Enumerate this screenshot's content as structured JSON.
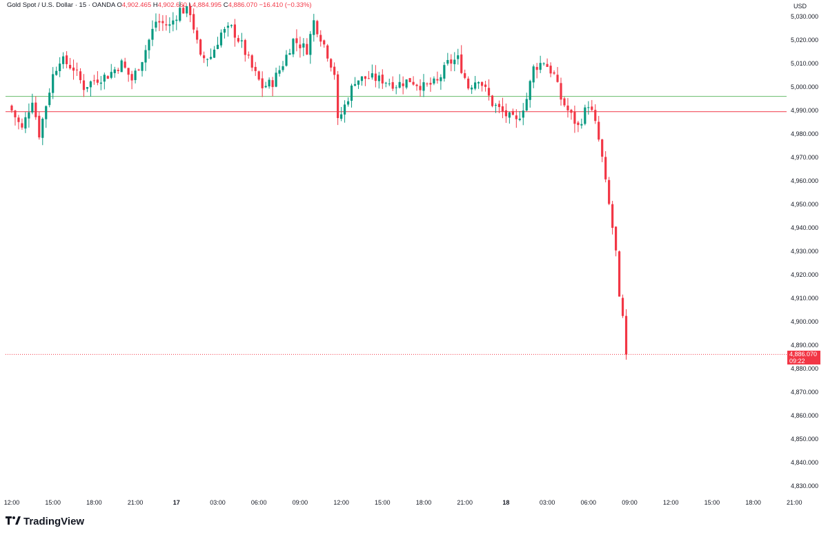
{
  "legend": {
    "symbol": "Gold Spot / U.S. Dollar · 15 · OANDA",
    "o_label": "O",
    "o_value": "4,902.465",
    "h_label": "H",
    "h_value": "4,902.660",
    "l_label": "L",
    "l_value": "4,884.995",
    "c_label": "C",
    "c_value": "4,886.070",
    "change": "−16.410 (−0.33%)"
  },
  "brand": {
    "name": "TradingView",
    "logo_icon": "tradingview-logo-icon"
  },
  "colors": {
    "up": "#089981",
    "down": "#f23645",
    "grid_line_up": "#66bb6a",
    "grid_line_down": "#f23645",
    "last_price": "#f23645"
  },
  "chart_data": {
    "type": "candlestick",
    "currency": "USD",
    "interval_minutes": 15,
    "ylim": [
      4825,
      5035
    ],
    "y_ticks": [
      "5,030.000",
      "5,020.000",
      "5,010.000",
      "5,000.000",
      "4,990.000",
      "4,980.000",
      "4,970.000",
      "4,960.000",
      "4,950.000",
      "4,940.000",
      "4,930.000",
      "4,920.000",
      "4,910.000",
      "4,900.000",
      "4,890.000",
      "4,880.000",
      "4,870.000",
      "4,860.000",
      "4,850.000",
      "4,840.000",
      "4,830.000"
    ],
    "x_ticks": [
      {
        "label": "12:00",
        "bar": 0,
        "bold": false
      },
      {
        "label": "15:00",
        "bar": 12,
        "bold": false
      },
      {
        "label": "18:00",
        "bar": 24,
        "bold": false
      },
      {
        "label": "21:00",
        "bar": 36,
        "bold": false
      },
      {
        "label": "17",
        "bar": 48,
        "bold": true
      },
      {
        "label": "03:00",
        "bar": 60,
        "bold": false
      },
      {
        "label": "06:00",
        "bar": 72,
        "bold": false
      },
      {
        "label": "09:00",
        "bar": 84,
        "bold": false
      },
      {
        "label": "12:00",
        "bar": 96,
        "bold": false
      },
      {
        "label": "15:00",
        "bar": 108,
        "bold": false
      },
      {
        "label": "18:00",
        "bar": 120,
        "bold": false
      },
      {
        "label": "21:00",
        "bar": 132,
        "bold": false
      },
      {
        "label": "18",
        "bar": 144,
        "bold": true
      },
      {
        "label": "03:00",
        "bar": 156,
        "bold": false
      },
      {
        "label": "06:00",
        "bar": 168,
        "bold": false
      },
      {
        "label": "09:00",
        "bar": 180,
        "bold": false
      },
      {
        "label": "12:00",
        "bar": 192,
        "bold": false
      },
      {
        "label": "15:00",
        "bar": 204,
        "bold": false
      },
      {
        "label": "18:00",
        "bar": 216,
        "bold": false
      },
      {
        "label": "21:00",
        "bar": 228,
        "bold": false
      }
    ],
    "horizontal_lines": [
      {
        "value": 4996.0,
        "kind": "up"
      },
      {
        "value": 4989.5,
        "kind": "down"
      }
    ],
    "last_price": {
      "value": 4886.07,
      "label": "4,886.070",
      "countdown": "09:22"
    },
    "key_points": [
      [
        0,
        4990
      ],
      [
        3,
        4982
      ],
      [
        6,
        4995
      ],
      [
        8,
        4980
      ],
      [
        12,
        5005
      ],
      [
        14,
        5012
      ],
      [
        18,
        5008
      ],
      [
        21,
        5000
      ],
      [
        24,
        5003
      ],
      [
        28,
        5005
      ],
      [
        32,
        5010
      ],
      [
        35,
        5003
      ],
      [
        38,
        5012
      ],
      [
        42,
        5028
      ],
      [
        46,
        5026
      ],
      [
        49,
        5033
      ],
      [
        52,
        5032
      ],
      [
        55,
        5012
      ],
      [
        58,
        5013
      ],
      [
        61,
        5023
      ],
      [
        64,
        5025
      ],
      [
        67,
        5018
      ],
      [
        70,
        5008
      ],
      [
        73,
        5000
      ],
      [
        76,
        5002
      ],
      [
        79,
        5010
      ],
      [
        82,
        5020
      ],
      [
        86,
        5016
      ],
      [
        88,
        5028
      ],
      [
        91,
        5018
      ],
      [
        94,
        5006
      ],
      [
        95,
        4985
      ],
      [
        97,
        4992
      ],
      [
        100,
        5003
      ],
      [
        104,
        5004
      ],
      [
        108,
        5003
      ],
      [
        112,
        5001
      ],
      [
        116,
        5003
      ],
      [
        120,
        5000
      ],
      [
        124,
        5002
      ],
      [
        127,
        5010
      ],
      [
        130,
        5012
      ],
      [
        133,
        5000
      ],
      [
        136,
        5004
      ],
      [
        140,
        4993
      ],
      [
        144,
        4988
      ],
      [
        147,
        4985
      ],
      [
        150,
        4995
      ],
      [
        152,
        5008
      ],
      [
        155,
        5011
      ],
      [
        158,
        5005
      ],
      [
        160,
        4995
      ],
      [
        162,
        4990
      ],
      [
        165,
        4983
      ],
      [
        168,
        4993
      ],
      [
        170,
        4985
      ],
      [
        172,
        4970
      ],
      [
        174,
        4950
      ],
      [
        176,
        4930
      ],
      [
        177,
        4910
      ],
      [
        178,
        4902
      ],
      [
        179,
        4886.07
      ]
    ]
  }
}
